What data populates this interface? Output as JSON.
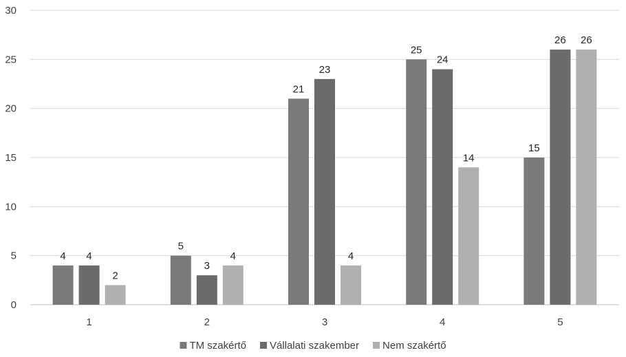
{
  "chart_data": {
    "type": "bar",
    "categories": [
      "1",
      "2",
      "3",
      "4",
      "5"
    ],
    "series": [
      {
        "name": "TM szakértő",
        "values": [
          4,
          5,
          21,
          25,
          15
        ],
        "color": "#7a7a7a"
      },
      {
        "name": "Vállalati szakember",
        "values": [
          4,
          3,
          23,
          24,
          26
        ],
        "color": "#6b6b6b"
      },
      {
        "name": "Nem szakértő",
        "values": [
          2,
          4,
          4,
          14,
          26
        ],
        "color": "#b0b0b0"
      }
    ],
    "ylim": [
      0,
      30
    ],
    "yticks": [
      "0",
      "5",
      "10",
      "15",
      "20",
      "25",
      "30"
    ],
    "grid": true,
    "legend_position": "bottom",
    "data_labels": true
  }
}
